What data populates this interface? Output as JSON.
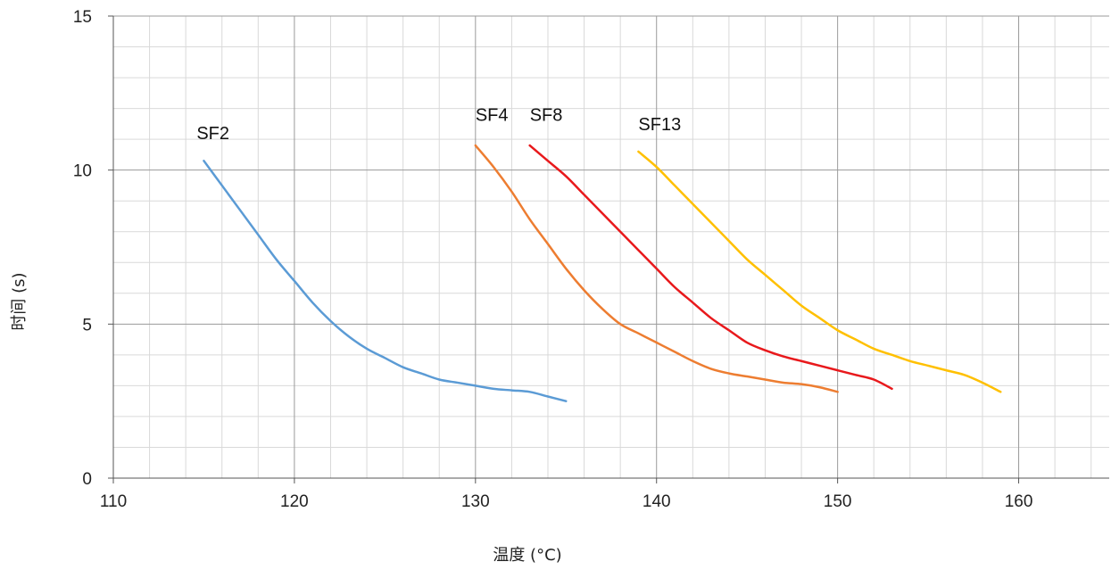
{
  "chart_data": {
    "type": "line",
    "title": "",
    "xlabel": "温度 (°C)",
    "ylabel": "时间 (s)",
    "xlim": [
      110,
      165
    ],
    "ylim": [
      0,
      15
    ],
    "x_ticks": [
      110,
      120,
      130,
      140,
      150,
      160
    ],
    "y_ticks": [
      0,
      5,
      10,
      15
    ],
    "x_minor_step": 2,
    "y_minor_step": 1,
    "grid": true,
    "legend": "none",
    "series": [
      {
        "name": "SF2",
        "color": "#5B9BD5",
        "label_at": [
          114.6,
          11.0
        ],
        "points": [
          [
            115,
            10.3
          ],
          [
            116,
            9.5
          ],
          [
            117,
            8.7
          ],
          [
            118,
            7.9
          ],
          [
            119,
            7.1
          ],
          [
            120,
            6.4
          ],
          [
            121,
            5.7
          ],
          [
            122,
            5.1
          ],
          [
            123,
            4.6
          ],
          [
            124,
            4.2
          ],
          [
            125,
            3.9
          ],
          [
            126,
            3.6
          ],
          [
            127,
            3.4
          ],
          [
            128,
            3.2
          ],
          [
            129,
            3.1
          ],
          [
            130,
            3.0
          ],
          [
            131,
            2.9
          ],
          [
            132,
            2.85
          ],
          [
            133,
            2.8
          ],
          [
            134,
            2.65
          ],
          [
            135,
            2.5
          ]
        ]
      },
      {
        "name": "SF4",
        "color": "#ED7D31",
        "label_at": [
          130.0,
          11.6
        ],
        "points": [
          [
            130,
            10.8
          ],
          [
            131,
            10.1
          ],
          [
            132,
            9.3
          ],
          [
            133,
            8.4
          ],
          [
            134,
            7.6
          ],
          [
            135,
            6.8
          ],
          [
            136,
            6.1
          ],
          [
            137,
            5.5
          ],
          [
            138,
            5.0
          ],
          [
            139,
            4.7
          ],
          [
            140,
            4.4
          ],
          [
            141,
            4.1
          ],
          [
            142,
            3.8
          ],
          [
            143,
            3.55
          ],
          [
            144,
            3.4
          ],
          [
            145,
            3.3
          ],
          [
            146,
            3.2
          ],
          [
            147,
            3.1
          ],
          [
            148,
            3.05
          ],
          [
            149,
            2.95
          ],
          [
            150,
            2.8
          ]
        ]
      },
      {
        "name": "SF8",
        "color": "#E8191C",
        "label_at": [
          133.0,
          11.6
        ],
        "points": [
          [
            133,
            10.8
          ],
          [
            134,
            10.3
          ],
          [
            135,
            9.8
          ],
          [
            136,
            9.2
          ],
          [
            137,
            8.6
          ],
          [
            138,
            8.0
          ],
          [
            139,
            7.4
          ],
          [
            140,
            6.8
          ],
          [
            141,
            6.2
          ],
          [
            142,
            5.7
          ],
          [
            143,
            5.2
          ],
          [
            144,
            4.8
          ],
          [
            145,
            4.4
          ],
          [
            146,
            4.15
          ],
          [
            147,
            3.95
          ],
          [
            148,
            3.8
          ],
          [
            149,
            3.65
          ],
          [
            150,
            3.5
          ],
          [
            151,
            3.35
          ],
          [
            152,
            3.2
          ],
          [
            153,
            2.9
          ]
        ]
      },
      {
        "name": "SF13",
        "color": "#FFC000",
        "label_at": [
          139.0,
          11.3
        ],
        "points": [
          [
            139,
            10.6
          ],
          [
            140,
            10.1
          ],
          [
            141,
            9.5
          ],
          [
            142,
            8.9
          ],
          [
            143,
            8.3
          ],
          [
            144,
            7.7
          ],
          [
            145,
            7.1
          ],
          [
            146,
            6.6
          ],
          [
            147,
            6.1
          ],
          [
            148,
            5.6
          ],
          [
            149,
            5.2
          ],
          [
            150,
            4.8
          ],
          [
            151,
            4.5
          ],
          [
            152,
            4.2
          ],
          [
            153,
            4.0
          ],
          [
            154,
            3.8
          ],
          [
            155,
            3.65
          ],
          [
            156,
            3.5
          ],
          [
            157,
            3.35
          ],
          [
            158,
            3.1
          ],
          [
            159,
            2.8
          ]
        ]
      }
    ]
  }
}
